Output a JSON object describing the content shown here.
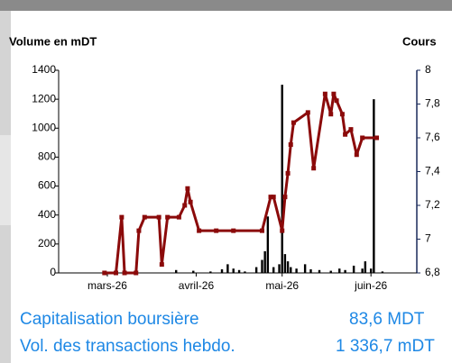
{
  "chart_data": {
    "type": "combo",
    "y_label": "Volume en mDT",
    "y2_label": "Cours",
    "xlim": [
      43,
      168
    ],
    "xticks": [
      {
        "value": 60,
        "label": "mars-26"
      },
      {
        "value": 91,
        "label": "avril-26"
      },
      {
        "value": 121,
        "label": "mai-26"
      },
      {
        "value": 152,
        "label": "juin-26"
      }
    ],
    "ylim": [
      0,
      1400
    ],
    "yticks": [
      0,
      200,
      400,
      600,
      800,
      1000,
      1200,
      1400
    ],
    "y2lim": [
      6.8,
      8
    ],
    "y2ticks": [
      {
        "value": 6.8,
        "label": "6,8"
      },
      7,
      {
        "value": 7.2,
        "label": "7,2"
      },
      {
        "value": 7.4,
        "label": "7,4"
      },
      {
        "value": 7.6,
        "label": "7,6"
      },
      {
        "value": 7.8,
        "label": "7,8"
      },
      8
    ],
    "series": [
      {
        "type": "bar",
        "color": "#000000",
        "x": [
          84,
          90,
          96,
          100,
          102,
          104,
          106,
          108,
          112,
          114,
          115,
          116,
          118,
          120,
          121,
          122,
          123,
          124,
          126,
          129,
          131,
          134,
          138,
          141,
          143,
          146,
          149,
          150,
          152,
          153,
          156
        ],
        "values": [
          20,
          15,
          10,
          25,
          60,
          30,
          20,
          10,
          40,
          90,
          150,
          390,
          40,
          60,
          1300,
          130,
          80,
          40,
          30,
          60,
          25,
          20,
          15,
          30,
          20,
          50,
          30,
          80,
          30,
          1200,
          10
        ]
      },
      {
        "type": "line",
        "axis": "y2",
        "color": "#8b0a0a",
        "x": [
          59,
          63,
          65,
          66,
          70,
          71,
          73,
          78,
          79,
          81,
          85,
          87,
          88,
          89,
          92,
          98,
          104,
          114,
          117,
          118,
          121,
          122,
          123,
          124,
          125,
          130,
          132,
          136,
          138,
          139,
          140,
          142,
          143,
          145,
          147,
          149,
          154
        ],
        "values": [
          6.8,
          6.8,
          7.13,
          6.8,
          6.8,
          7.05,
          7.13,
          7.13,
          6.85,
          7.13,
          7.13,
          7.2,
          7.3,
          7.22,
          7.05,
          7.05,
          7.05,
          7.05,
          7.25,
          7.25,
          7.05,
          7.25,
          7.39,
          7.56,
          7.69,
          7.75,
          7.42,
          7.86,
          7.74,
          7.86,
          7.82,
          7.74,
          7.62,
          7.65,
          7.5,
          7.6,
          7.6
        ]
      }
    ]
  },
  "stats": [
    {
      "label": "Capitalisation boursière",
      "value": "83,6 MDT"
    },
    {
      "label": "Vol. des transactions hebdo.",
      "value": "1 336,7 mDT"
    }
  ]
}
